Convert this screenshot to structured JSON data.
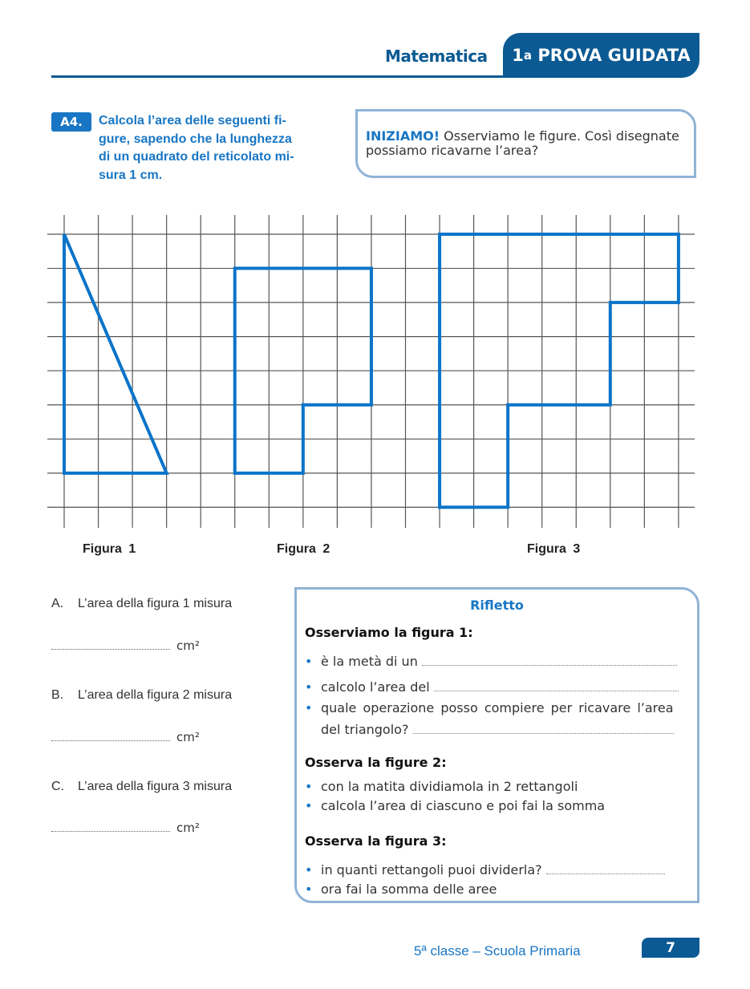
{
  "header": {
    "subject": "Matematica",
    "test_number": "1",
    "test_ordinal": "a",
    "test_label": "PROVA GUIDATA"
  },
  "exercise": {
    "badge": "A4.",
    "instruction_lines": [
      "Calcola l’area delle seguenti fi-",
      "gure, sapendo che la lunghezza",
      "di un quadrato del reticolato mi-",
      "sura 1 cm."
    ]
  },
  "hint": {
    "lead": "INIZIAMO!",
    "text_lines": [
      "Osserviamo le figure. Così disegnate",
      "possiamo ricavarne l’area?"
    ]
  },
  "grid": {
    "columns": 19,
    "rows": 9,
    "colors": {
      "grid_line": "#555555",
      "figure_stroke": "#0b74c9"
    },
    "figures": [
      {
        "label": "Figura  1",
        "vertices": [
          [
            0,
            0
          ],
          [
            0,
            7
          ],
          [
            3,
            7
          ]
        ]
      },
      {
        "label": "Figura  2",
        "vertices": [
          [
            5,
            1
          ],
          [
            9,
            1
          ],
          [
            9,
            5
          ],
          [
            7,
            5
          ],
          [
            7,
            7
          ],
          [
            5,
            7
          ]
        ]
      },
      {
        "label": "Figura  3",
        "vertices": [
          [
            11,
            0
          ],
          [
            18,
            0
          ],
          [
            18,
            2
          ],
          [
            16,
            2
          ],
          [
            16,
            5
          ],
          [
            13,
            5
          ],
          [
            13,
            8
          ],
          [
            11,
            8
          ]
        ]
      }
    ]
  },
  "questions": [
    {
      "letter": "A.",
      "text": "L’area della figura 1 misura",
      "unit": "cm²"
    },
    {
      "letter": "B.",
      "text": "L’area della figura 2 misura",
      "unit": "cm²"
    },
    {
      "letter": "C.",
      "text": "L’area della figura 3 misura",
      "unit": "cm²"
    }
  ],
  "rifletto": {
    "title": "Rifletto",
    "sections": [
      {
        "heading": "Osserviamo la figura 1:",
        "items": [
          "è la metà di un",
          "calcolo l’area del",
          "quale operazione posso compiere per ricavare l’area",
          "del triangolo?"
        ]
      },
      {
        "heading": "Osserva la figure 2:",
        "items": [
          "con la matita dividiamola in 2 rettangoli",
          "calcola l’area di ciascuno e poi fai la somma"
        ]
      },
      {
        "heading": "Osserva la figura 3:",
        "items": [
          "in quanti rettangoli puoi dividerla?",
          "ora fai la somma delle aree"
        ]
      }
    ]
  },
  "footer": {
    "text": "5ª classe – Scuola Primaria",
    "page": "7"
  }
}
